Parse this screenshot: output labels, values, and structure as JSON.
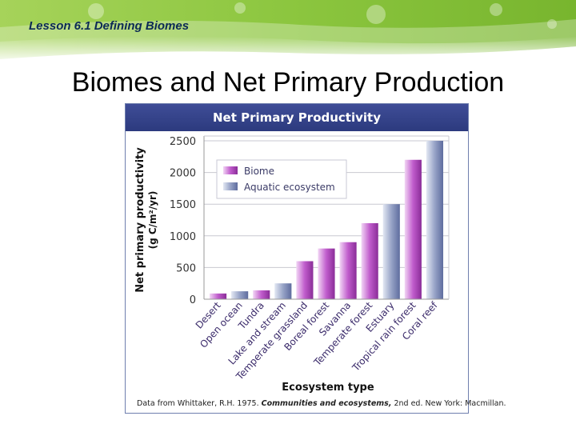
{
  "header": {
    "lesson": "Lesson 6.1 Defining Biomes"
  },
  "slide": {
    "title": "Biomes and Net Primary Production"
  },
  "colors": {
    "biome": "#a43fb0",
    "aquatic": "#7f8db9",
    "header_bar": "#2f3d82",
    "banner_green": "#8cc63f"
  },
  "chart_data": {
    "type": "bar",
    "title": "Net Primary Productivity",
    "ylabel_line1": "Net primary productivity",
    "ylabel_line2": "(g C/m²/yr)",
    "xlabel": "Ecosystem type",
    "ylim": [
      0,
      2500
    ],
    "yticks": [
      0,
      500,
      1000,
      1500,
      2000,
      2500
    ],
    "grid": true,
    "legend_position": "top-left",
    "legend": [
      {
        "label": "Biome",
        "kind": "biome"
      },
      {
        "label": "Aquatic ecosystem",
        "kind": "aquatic"
      }
    ],
    "categories": [
      "Desert",
      "Open ocean",
      "Tundra",
      "Lake and stream",
      "Temperate grassland",
      "Boreal forest",
      "Savanna",
      "Temperate forest",
      "Estuary",
      "Tropical rain forest",
      "Coral reef"
    ],
    "values": [
      90,
      125,
      140,
      250,
      600,
      800,
      900,
      1200,
      1500,
      2200,
      2500
    ],
    "kinds": [
      "biome",
      "aquatic",
      "biome",
      "aquatic",
      "biome",
      "biome",
      "biome",
      "biome",
      "aquatic",
      "biome",
      "aquatic"
    ]
  },
  "source": {
    "prefix": "Data from Whittaker, R.H. 1975. ",
    "title": "Communities and ecosystems,",
    "suffix": " 2nd ed. New York: Macmillan."
  }
}
